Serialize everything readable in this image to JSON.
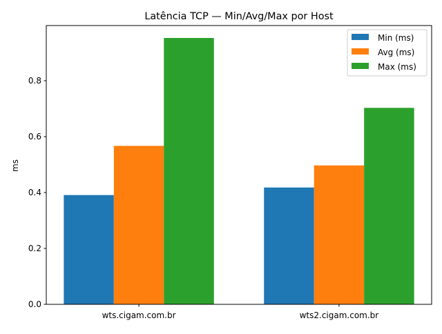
{
  "chart_data": {
    "type": "bar",
    "title": "Latência TCP — Min/Avg/Max por Host",
    "xlabel": "",
    "ylabel": "ms",
    "categories": [
      "wts.cigam.com.br",
      "wts2.cigam.com.br"
    ],
    "series": [
      {
        "name": "Min (ms)",
        "color": "#1f77b4",
        "values": [
          0.391,
          0.418
        ]
      },
      {
        "name": "Avg (ms)",
        "color": "#ff7f0e",
        "values": [
          0.567,
          0.497
        ]
      },
      {
        "name": "Max (ms)",
        "color": "#2ca02c",
        "values": [
          0.953,
          0.703
        ]
      }
    ],
    "ylim": [
      0,
      1.0
    ],
    "yticks": [
      "0.0",
      "0.2",
      "0.4",
      "0.6",
      "0.8"
    ],
    "grid": false,
    "legend": "top-right"
  }
}
